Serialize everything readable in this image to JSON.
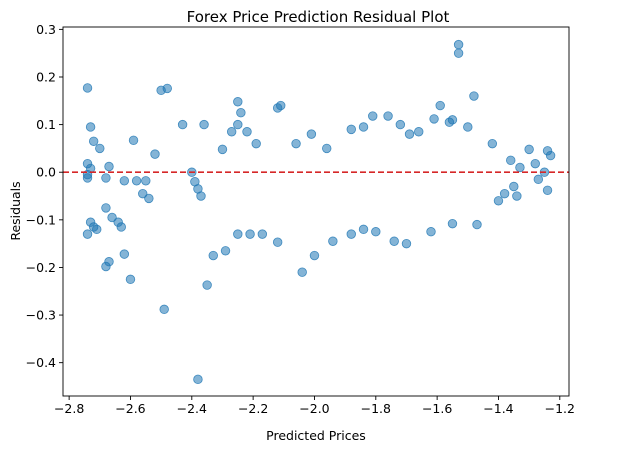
{
  "chart_data": {
    "type": "scatter",
    "title": "Forex Price Prediction Residual Plot",
    "xlabel": "Predicted Prices",
    "ylabel": "Residuals",
    "xlim": [
      -2.82,
      -1.17
    ],
    "ylim": [
      -0.47,
      0.305
    ],
    "xticks": [
      -2.8,
      -2.6,
      -2.4,
      -2.2,
      -2.0,
      -1.8,
      -1.6,
      -1.4,
      -1.2
    ],
    "xtick_labels": [
      "−2.8",
      "−2.6",
      "−2.4",
      "−2.2",
      "−2.0",
      "−1.8",
      "−1.6",
      "−1.4",
      "−1.2"
    ],
    "yticks": [
      -0.4,
      -0.3,
      -0.2,
      -0.1,
      0.0,
      0.1,
      0.2,
      0.3
    ],
    "ytick_labels": [
      "−0.4",
      "−0.3",
      "−0.2",
      "−0.1",
      "0.0",
      "0.1",
      "0.2",
      "0.3"
    ],
    "grid": false,
    "marker_color": "#1f77b4",
    "marker_alpha": 0.55,
    "reference_line": {
      "y": 0.0,
      "color": "#d62728",
      "style": "dashed"
    },
    "points": [
      [
        -2.74,
        0.177
      ],
      [
        -2.73,
        0.095
      ],
      [
        -2.72,
        0.065
      ],
      [
        -2.7,
        0.05
      ],
      [
        -2.74,
        0.018
      ],
      [
        -2.73,
        0.008
      ],
      [
        -2.74,
        -0.005
      ],
      [
        -2.74,
        -0.012
      ],
      [
        -2.67,
        0.012
      ],
      [
        -2.68,
        -0.012
      ],
      [
        -2.62,
        -0.018
      ],
      [
        -2.58,
        -0.018
      ],
      [
        -2.59,
        0.067
      ],
      [
        -2.55,
        -0.018
      ],
      [
        -2.52,
        0.038
      ],
      [
        -2.56,
        -0.045
      ],
      [
        -2.54,
        -0.055
      ],
      [
        -2.68,
        -0.075
      ],
      [
        -2.66,
        -0.095
      ],
      [
        -2.64,
        -0.105
      ],
      [
        -2.63,
        -0.115
      ],
      [
        -2.73,
        -0.105
      ],
      [
        -2.72,
        -0.115
      ],
      [
        -2.71,
        -0.12
      ],
      [
        -2.74,
        -0.13
      ],
      [
        -2.62,
        -0.172
      ],
      [
        -2.67,
        -0.188
      ],
      [
        -2.68,
        -0.198
      ],
      [
        -2.6,
        -0.225
      ],
      [
        -2.49,
        -0.288
      ],
      [
        -2.5,
        0.172
      ],
      [
        -2.48,
        0.176
      ],
      [
        -2.43,
        0.1
      ],
      [
        -2.36,
        0.1
      ],
      [
        -2.35,
        -0.237
      ],
      [
        -2.38,
        -0.435
      ],
      [
        -2.4,
        0.0
      ],
      [
        -2.39,
        -0.02
      ],
      [
        -2.38,
        -0.035
      ],
      [
        -2.37,
        -0.05
      ],
      [
        -2.25,
        0.148
      ],
      [
        -2.24,
        0.125
      ],
      [
        -2.25,
        0.1
      ],
      [
        -2.27,
        0.085
      ],
      [
        -2.22,
        0.085
      ],
      [
        -2.3,
        0.048
      ],
      [
        -2.19,
        0.06
      ],
      [
        -2.12,
        0.135
      ],
      [
        -2.11,
        0.14
      ],
      [
        -2.06,
        0.06
      ],
      [
        -2.01,
        0.08
      ],
      [
        -1.96,
        0.05
      ],
      [
        -1.88,
        0.09
      ],
      [
        -1.84,
        0.095
      ],
      [
        -1.81,
        0.118
      ],
      [
        -1.76,
        0.118
      ],
      [
        -1.72,
        0.1
      ],
      [
        -1.69,
        0.08
      ],
      [
        -1.66,
        0.085
      ],
      [
        -1.61,
        0.112
      ],
      [
        -1.59,
        0.14
      ],
      [
        -1.56,
        0.105
      ],
      [
        -1.55,
        0.11
      ],
      [
        -1.53,
        0.268
      ],
      [
        -1.53,
        0.25
      ],
      [
        -1.48,
        0.16
      ],
      [
        -1.5,
        0.095
      ],
      [
        -1.42,
        0.06
      ],
      [
        -1.3,
        0.048
      ],
      [
        -1.24,
        0.045
      ],
      [
        -1.23,
        0.035
      ],
      [
        -2.33,
        -0.175
      ],
      [
        -2.29,
        -0.165
      ],
      [
        -2.25,
        -0.13
      ],
      [
        -2.21,
        -0.13
      ],
      [
        -2.17,
        -0.13
      ],
      [
        -2.12,
        -0.147
      ],
      [
        -2.04,
        -0.21
      ],
      [
        -2.0,
        -0.175
      ],
      [
        -1.94,
        -0.145
      ],
      [
        -1.88,
        -0.13
      ],
      [
        -1.84,
        -0.12
      ],
      [
        -1.8,
        -0.125
      ],
      [
        -1.74,
        -0.145
      ],
      [
        -1.7,
        -0.15
      ],
      [
        -1.62,
        -0.125
      ],
      [
        -1.55,
        -0.108
      ],
      [
        -1.47,
        -0.11
      ],
      [
        -1.4,
        -0.06
      ],
      [
        -1.34,
        -0.05
      ],
      [
        -1.24,
        -0.038
      ],
      [
        -1.25,
        0.0
      ],
      [
        -1.28,
        0.018
      ],
      [
        -1.33,
        0.01
      ],
      [
        -1.36,
        0.025
      ],
      [
        -1.27,
        -0.015
      ],
      [
        -1.35,
        -0.03
      ],
      [
        -1.38,
        -0.045
      ]
    ]
  }
}
